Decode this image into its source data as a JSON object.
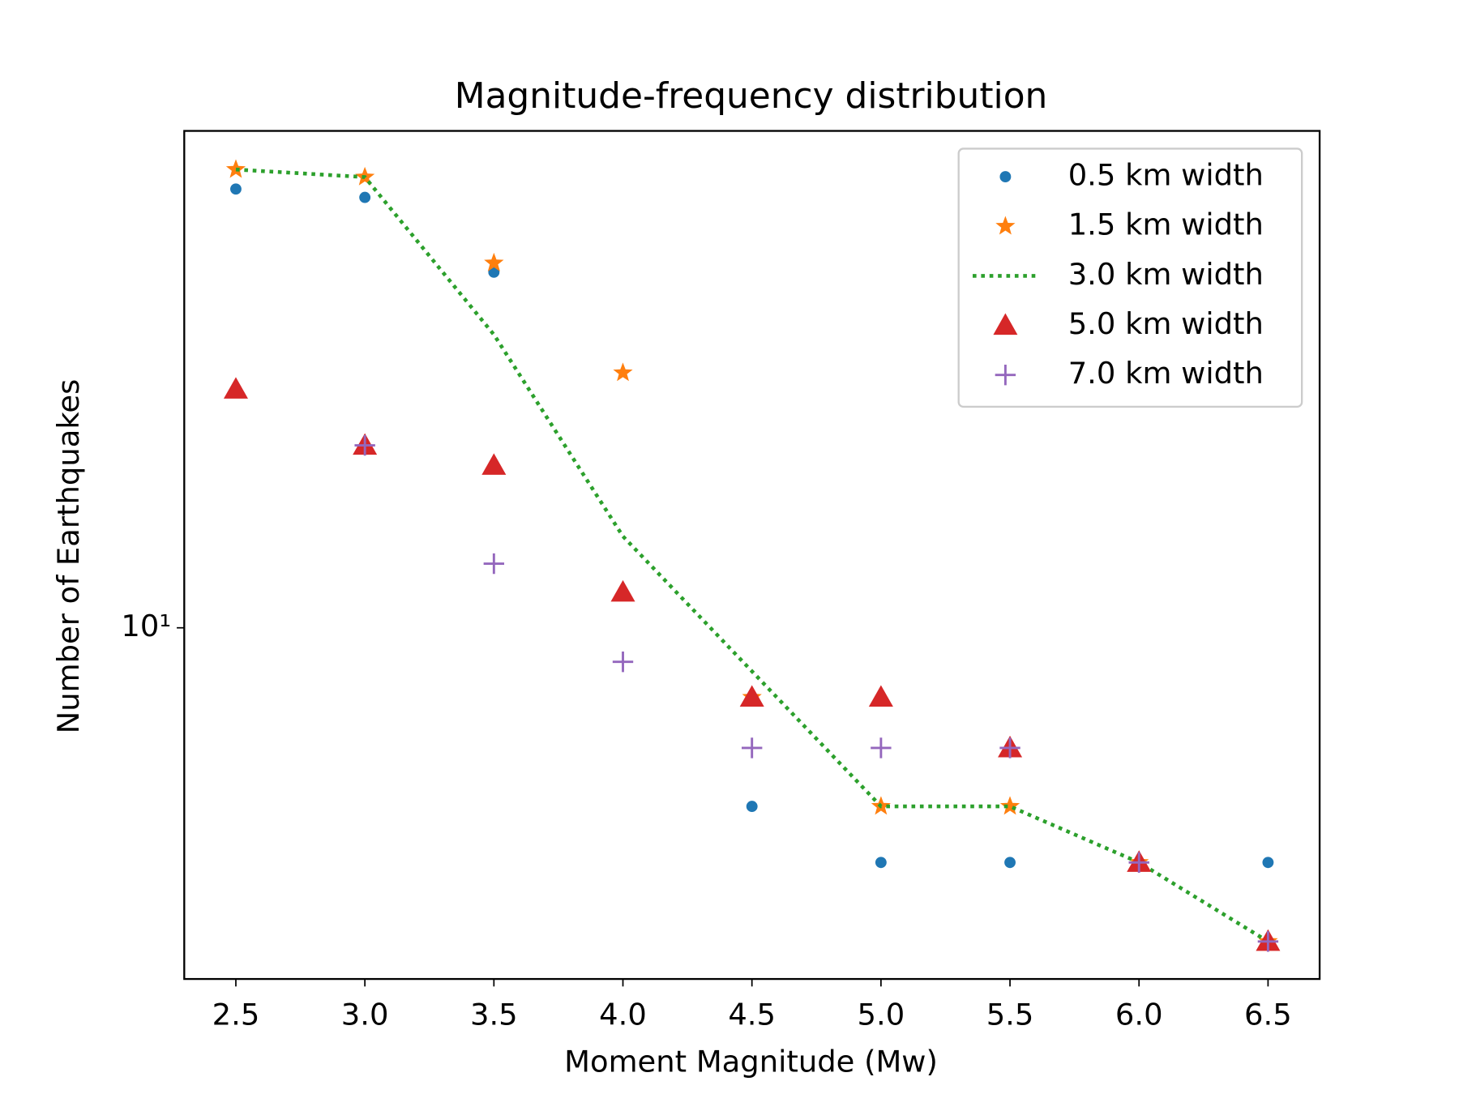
{
  "chart_data": {
    "type": "scatter",
    "title": "Magnitude-frequency distribution",
    "x_label": "Moment Magnitude (Mw)",
    "y_label": "Number of Earthquakes",
    "x": [
      2.5,
      3.0,
      3.5,
      4.0,
      4.5,
      5.0,
      5.5,
      6.0,
      6.5
    ],
    "series": [
      {
        "name": "0.5 km width",
        "color": "#1f77b4",
        "marker": "dot",
        "values": [
          95,
          91,
          62,
          null,
          4,
          3,
          3,
          3,
          3
        ]
      },
      {
        "name": "1.5 km width",
        "color": "#ff7f0e",
        "marker": "star",
        "values": [
          105,
          101,
          65,
          37,
          7,
          4,
          4,
          3,
          2
        ]
      },
      {
        "name": "3.0 km width",
        "color": "#2ca02c",
        "linestyle": "dotted",
        "values": [
          105,
          101,
          45,
          16,
          8,
          4,
          4,
          3,
          2
        ]
      },
      {
        "name": "5.0 km width",
        "color": "#d62728",
        "marker": "triangle",
        "values": [
          34,
          25.5,
          23,
          12,
          7,
          7,
          5.4,
          3,
          2
        ]
      },
      {
        "name": "7.0 km width",
        "color": "#9467bd",
        "marker": "plus",
        "values": [
          null,
          25.5,
          13.9,
          8.4,
          5.4,
          5.4,
          5.4,
          3,
          2
        ]
      }
    ],
    "xlim": [
      2.3,
      6.7
    ],
    "xticks": [
      2.5,
      {
        "value": 3.0,
        "label": "3.0"
      },
      3.5,
      {
        "value": 4.0,
        "label": "4.0"
      },
      4.5,
      {
        "value": 5.0,
        "label": "5.0"
      },
      5.5,
      {
        "value": 6.0,
        "label": "6.0"
      },
      6.5
    ],
    "ylim": [
      1.65,
      128
    ],
    "yscale": "log",
    "yticks": [
      {
        "value": 10,
        "label": "10¹"
      }
    ],
    "legend": "upper right"
  }
}
